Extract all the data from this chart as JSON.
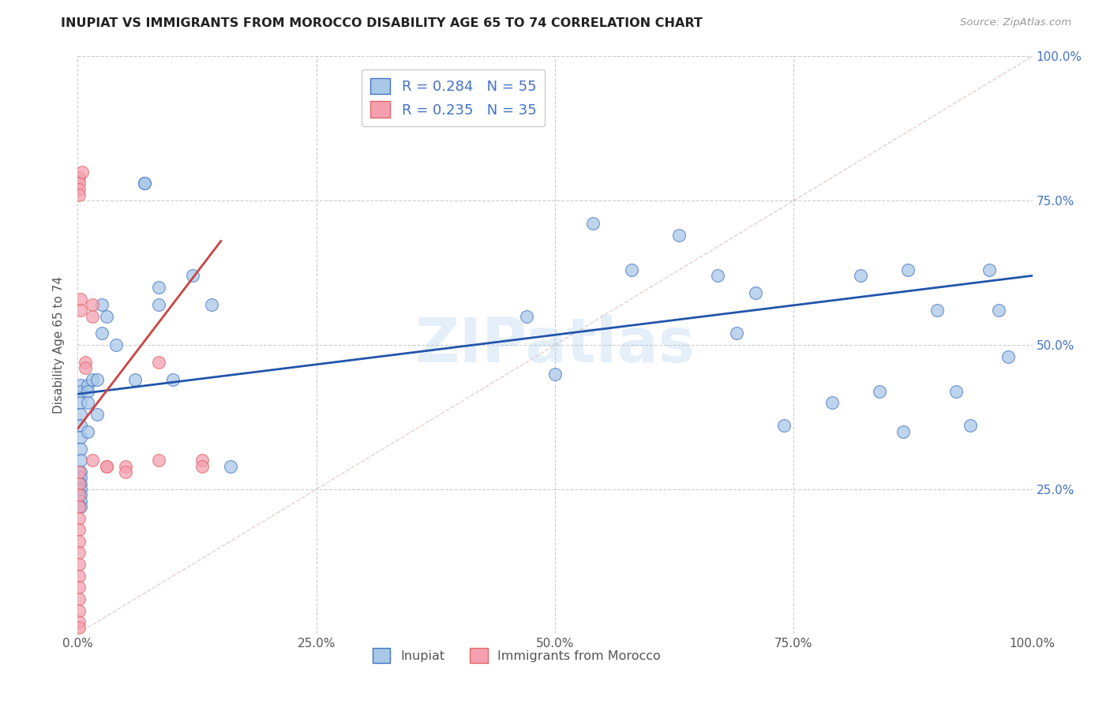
{
  "title": "INUPIAT VS IMMIGRANTS FROM MOROCCO DISABILITY AGE 65 TO 74 CORRELATION CHART",
  "source": "Source: ZipAtlas.com",
  "ylabel": "Disability Age 65 to 74",
  "xlim": [
    0,
    1.0
  ],
  "ylim": [
    0,
    1.0
  ],
  "xticks": [
    0.0,
    0.25,
    0.5,
    0.75,
    1.0
  ],
  "yticks": [
    0.25,
    0.5,
    0.75,
    1.0
  ],
  "xticklabels": [
    "0.0%",
    "25.0%",
    "50.0%",
    "75.0%",
    "100.0%"
  ],
  "yticklabels_right": [
    "25.0%",
    "50.0%",
    "75.0%",
    "100.0%"
  ],
  "legend1_label": "R = 0.284   N = 55",
  "legend2_label": "R = 0.235   N = 35",
  "series1_color": "#a8c8e8",
  "series2_color": "#f4a0b0",
  "series1_edge_color": "#4472c4",
  "series2_edge_color": "#e06666",
  "series1_line_color": "#2255aa",
  "series2_line_color": "#cc4444",
  "diagonal_color": "#cccccc",
  "watermark": "ZIPatlas",
  "inupiat_x": [
    0.003,
    0.003,
    0.003,
    0.003,
    0.003,
    0.003,
    0.003,
    0.003,
    0.003,
    0.003,
    0.003,
    0.003,
    0.003,
    0.003,
    0.003,
    0.01,
    0.01,
    0.01,
    0.01,
    0.015,
    0.02,
    0.02,
    0.025,
    0.025,
    0.03,
    0.04,
    0.06,
    0.07,
    0.07,
    0.085,
    0.085,
    0.1,
    0.12,
    0.14,
    0.16,
    0.47,
    0.5,
    0.54,
    0.58,
    0.63,
    0.67,
    0.69,
    0.71,
    0.74,
    0.79,
    0.82,
    0.84,
    0.865,
    0.87,
    0.9,
    0.92,
    0.935,
    0.955,
    0.965,
    0.975
  ],
  "inupiat_y": [
    0.43,
    0.42,
    0.4,
    0.38,
    0.36,
    0.34,
    0.32,
    0.3,
    0.28,
    0.27,
    0.26,
    0.25,
    0.24,
    0.23,
    0.22,
    0.43,
    0.42,
    0.4,
    0.35,
    0.44,
    0.44,
    0.38,
    0.57,
    0.52,
    0.55,
    0.5,
    0.44,
    0.78,
    0.78,
    0.6,
    0.57,
    0.44,
    0.62,
    0.57,
    0.29,
    0.55,
    0.45,
    0.71,
    0.63,
    0.69,
    0.62,
    0.52,
    0.59,
    0.36,
    0.4,
    0.62,
    0.42,
    0.35,
    0.63,
    0.56,
    0.42,
    0.36,
    0.63,
    0.56,
    0.48
  ],
  "morocco_x": [
    0.001,
    0.001,
    0.001,
    0.001,
    0.001,
    0.001,
    0.001,
    0.001,
    0.001,
    0.001,
    0.001,
    0.001,
    0.001,
    0.001,
    0.001,
    0.001,
    0.001,
    0.001,
    0.001,
    0.003,
    0.003,
    0.005,
    0.008,
    0.008,
    0.015,
    0.015,
    0.015,
    0.03,
    0.03,
    0.05,
    0.05,
    0.085,
    0.085,
    0.13,
    0.13
  ],
  "morocco_y": [
    0.28,
    0.26,
    0.24,
    0.22,
    0.2,
    0.18,
    0.16,
    0.14,
    0.12,
    0.1,
    0.08,
    0.06,
    0.04,
    0.02,
    0.01,
    0.79,
    0.78,
    0.77,
    0.76,
    0.58,
    0.56,
    0.8,
    0.47,
    0.46,
    0.57,
    0.55,
    0.3,
    0.29,
    0.29,
    0.29,
    0.28,
    0.47,
    0.3,
    0.3,
    0.29
  ],
  "inupiat_line_x": [
    0.0,
    1.0
  ],
  "inupiat_line_y": [
    0.415,
    0.62
  ],
  "morocco_line_x": [
    0.0,
    0.15
  ],
  "morocco_line_y": [
    0.355,
    0.68
  ]
}
